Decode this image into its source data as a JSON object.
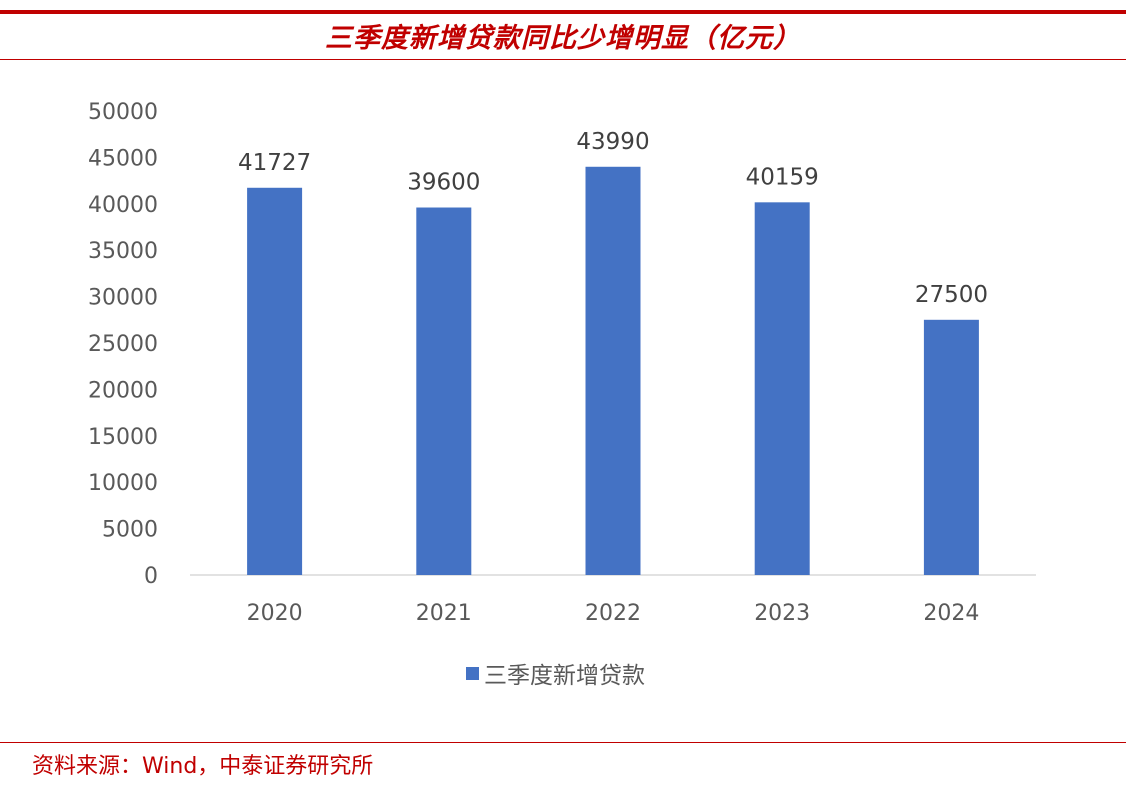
{
  "header": {
    "title": "三季度新增贷款同比少增明显（亿元）"
  },
  "footer": {
    "source": "资料来源：Wind，中泰证券研究所"
  },
  "colors": {
    "accent": "#c00000",
    "bar": "#4472c4",
    "axis_text": "#595959"
  },
  "chart_data": {
    "type": "bar",
    "categories": [
      "2020",
      "2021",
      "2022",
      "2023",
      "2024"
    ],
    "series": [
      {
        "name": "三季度新增贷款",
        "values": [
          41727,
          39600,
          43990,
          40159,
          27500
        ]
      }
    ],
    "data_labels": [
      "41727",
      "39600",
      "43990",
      "40159",
      "27500"
    ],
    "y_ticks": [
      "0",
      "5000",
      "10000",
      "15000",
      "20000",
      "25000",
      "30000",
      "35000",
      "40000",
      "45000",
      "50000"
    ],
    "ylim": [
      0,
      50000
    ],
    "grid": false,
    "legend_position": "bottom"
  }
}
